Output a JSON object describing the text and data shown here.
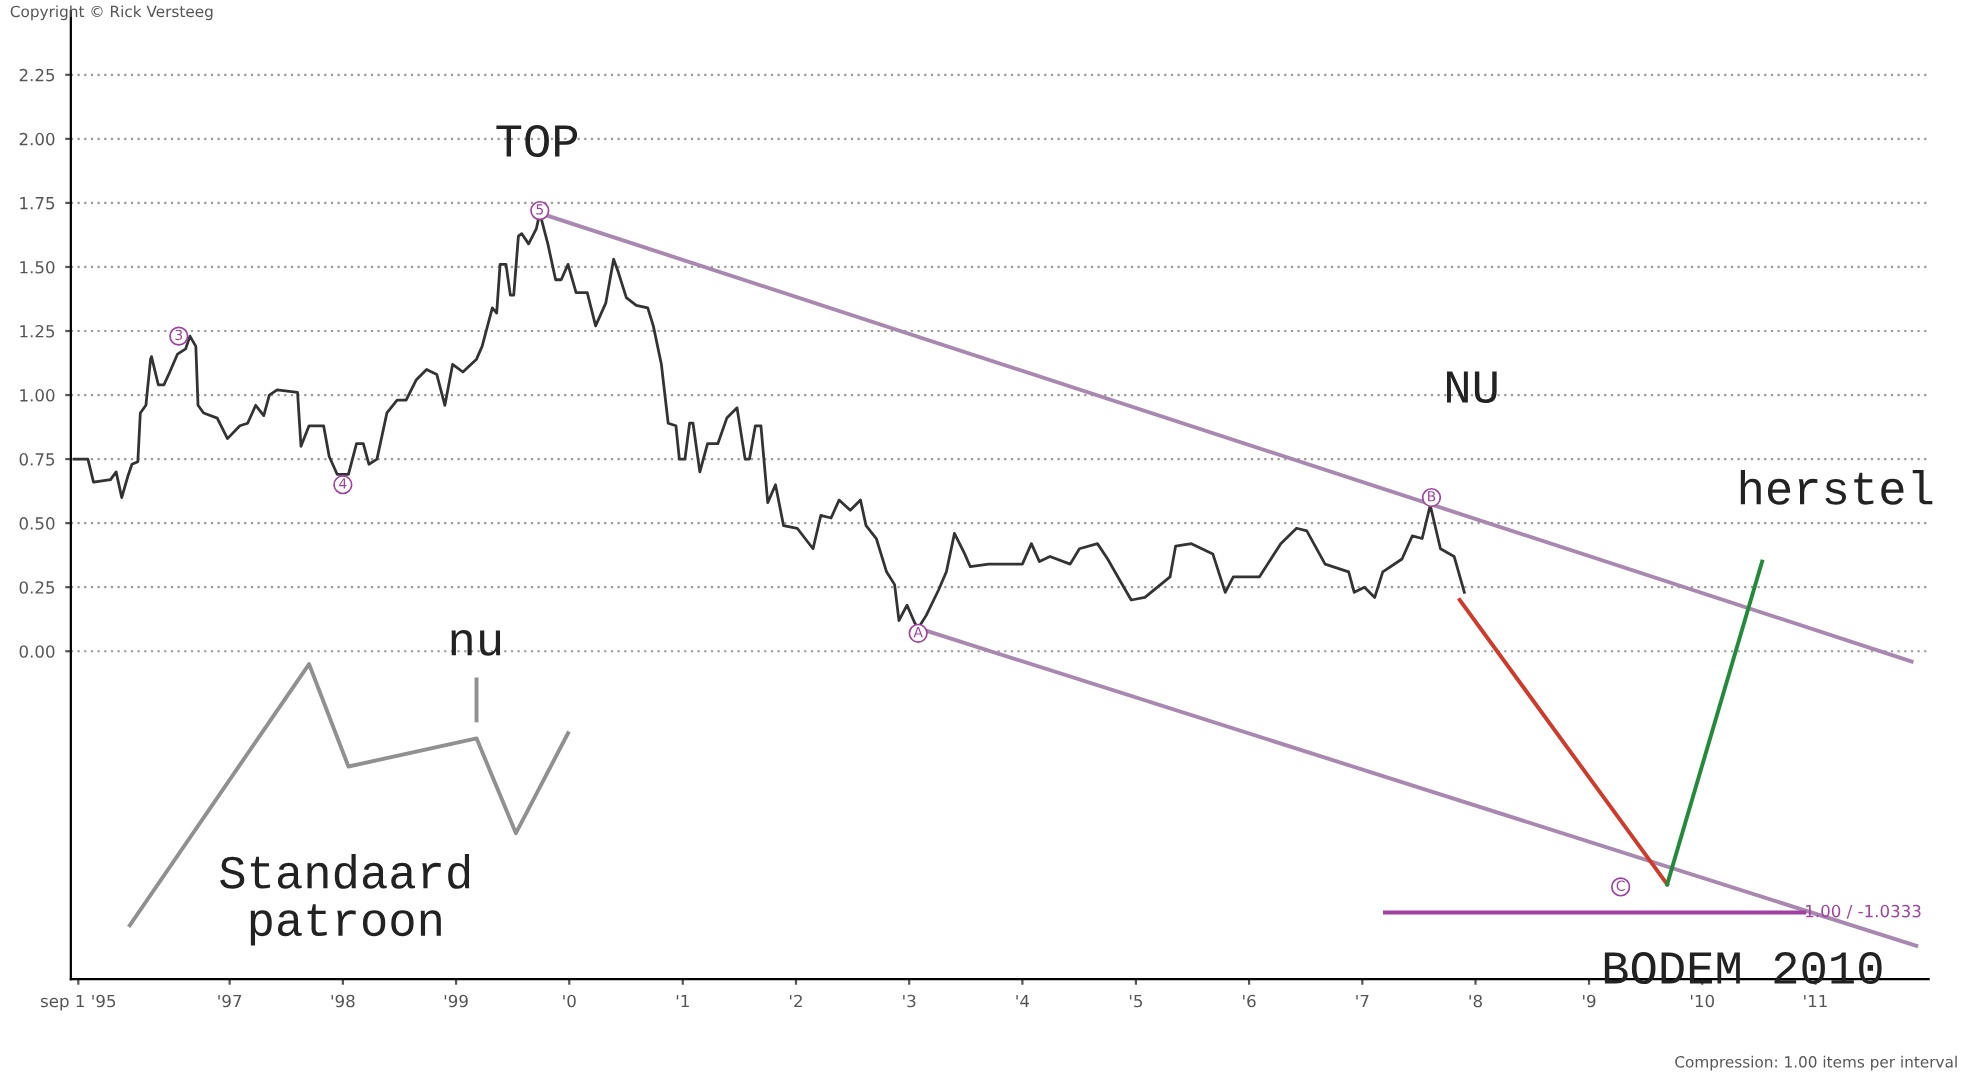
{
  "chart_data": {
    "type": "line",
    "xlim": [
      "1995-08-08",
      "2012-01-01"
    ],
    "ylim": [
      -1.28,
      2.5
    ],
    "xticks": [
      {
        "value": "1995-09-01",
        "label": "sep 1 '95"
      },
      {
        "value": "1997",
        "label": "'97"
      },
      {
        "value": "1998",
        "label": "'98"
      },
      {
        "value": "1999",
        "label": "'99"
      },
      {
        "value": "2000",
        "label": "'0"
      },
      {
        "value": "2001",
        "label": "'1"
      },
      {
        "value": "2002",
        "label": "'2"
      },
      {
        "value": "2003",
        "label": "'3"
      },
      {
        "value": "2004",
        "label": "'4"
      },
      {
        "value": "2005",
        "label": "'5"
      },
      {
        "value": "2006",
        "label": "'6"
      },
      {
        "value": "2007",
        "label": "'7"
      },
      {
        "value": "2008",
        "label": "'8"
      },
      {
        "value": "2009",
        "label": "'9"
      },
      {
        "value": "2010",
        "label": "'10"
      },
      {
        "value": "2011",
        "label": "'11"
      }
    ],
    "yticks": [
      {
        "value": 0,
        "label": "0.00"
      },
      {
        "value": 0.25,
        "label": "0.25"
      },
      {
        "value": 0.5,
        "label": "0.50"
      },
      {
        "value": 0.75,
        "label": "0.75"
      },
      {
        "value": 1,
        "label": "1.00"
      },
      {
        "value": 1.25,
        "label": "1.25"
      },
      {
        "value": 1.5,
        "label": "1.50"
      },
      {
        "value": 1.75,
        "label": "1.75"
      },
      {
        "value": 2,
        "label": "2.00"
      },
      {
        "value": 2.25,
        "label": "2.25"
      }
    ],
    "grid": "y",
    "line_style": "solid",
    "marker": "none",
    "series": [
      {
        "color": "#333333",
        "x": [
          "1995-08-19",
          "1995-10-02",
          "1995-10-20",
          "1995-12-14",
          "1996-01-01",
          "1996-01-19",
          "1996-02-07",
          "1996-02-21",
          "1996-03-11",
          "1996-03-19",
          "1996-04-06",
          "1996-04-21",
          "1996-04-24",
          "1996-05-16",
          "1996-06-03",
          "1996-06-22",
          "1996-07-17",
          "1996-08-12",
          "1996-08-26",
          "1996-09-14",
          "1996-09-21",
          "1996-10-09",
          "1996-11-22",
          "1996-12-25",
          "1997-02-03",
          "1997-02-28",
          "1997-03-26",
          "1997-04-21",
          "1997-05-09",
          "1997-06-03",
          "1997-08-08",
          "1997-08-19",
          "1997-09-14",
          "1997-10-31",
          "1997-11-18",
          "1997-12-14",
          "1998-01-19",
          "1998-02-14",
          "1998-03-08",
          "1998-03-26",
          "1998-04-21",
          "1998-05-23",
          "1998-06-25",
          "1998-07-24",
          "1998-08-26",
          "1998-09-28",
          "1998-10-31",
          "1998-11-26",
          "1998-12-21",
          "1999-01-23",
          "1999-03-08",
          "1999-03-26",
          "1999-04-28",
          "1999-05-12",
          "1999-05-23",
          "1999-06-11",
          "1999-06-25",
          "1999-07-06",
          "1999-07-21",
          "1999-08-01",
          "1999-08-23",
          "1999-09-17",
          "1999-09-28",
          "1999-10-24",
          "1999-11-18",
          "1999-12-06",
          "1999-12-28",
          "2000-01-23",
          "2000-02-28",
          "2000-03-26",
          "2000-04-28",
          "2000-05-23",
          "2000-06-07",
          "2000-07-03",
          "2000-08-04",
          "2000-09-10",
          "2000-09-28",
          "2000-10-24",
          "2000-11-15",
          "2000-12-10",
          "2000-12-21",
          "2001-01-08",
          "2001-01-23",
          "2001-02-03",
          "2001-02-25",
          "2001-03-22",
          "2001-04-24",
          "2001-05-23",
          "2001-06-25",
          "2001-07-21",
          "2001-08-04",
          "2001-08-23",
          "2001-09-10",
          "2001-10-02",
          "2001-10-27",
          "2001-11-22",
          "2002-01-05",
          "2002-02-25",
          "2002-03-22",
          "2002-04-24",
          "2002-05-20",
          "2002-06-25",
          "2002-07-28",
          "2002-08-15",
          "2002-09-17",
          "2002-10-20",
          "2002-11-15",
          "2002-11-29",
          "2002-12-25",
          "2003-01-19",
          "2003-01-30",
          "2003-02-25",
          "2003-04-06",
          "2003-05-01",
          "2003-05-27",
          "2003-06-29",
          "2003-07-17",
          "2003-09-14",
          "2004-01-01",
          "2004-01-30",
          "2004-02-25",
          "2004-03-30",
          "2004-06-03",
          "2004-07-03",
          "2004-08-30",
          "2004-10-02",
          "2004-11-04",
          "2004-12-17",
          "2005-01-30",
          "2005-04-21",
          "2005-05-09",
          "2005-06-29",
          "2005-09-06",
          "2005-10-16",
          "2005-11-11",
          "2006-02-03",
          "2006-04-13",
          "2006-06-03",
          "2006-07-06",
          "2006-09-03",
          "2006-11-18",
          "2006-12-06",
          "2007-01-08",
          "2007-02-10",
          "2007-03-08",
          "2007-05-09",
          "2007-06-11",
          "2007-07-13",
          "2007-08-08",
          "2007-09-10",
          "2007-10-24",
          "2007-11-26"
        ],
        "values": [
          0.75,
          0.75,
          0.66,
          0.67,
          0.7,
          0.6,
          0.68,
          0.73,
          0.74,
          0.93,
          0.96,
          1.14,
          1.15,
          1.04,
          1.04,
          1.09,
          1.16,
          1.18,
          1.23,
          1.19,
          0.96,
          0.93,
          0.91,
          0.83,
          0.88,
          0.89,
          0.96,
          0.92,
          1.0,
          1.02,
          1.01,
          0.8,
          0.88,
          0.88,
          0.76,
          0.69,
          0.69,
          0.81,
          0.81,
          0.73,
          0.75,
          0.93,
          0.98,
          0.98,
          1.06,
          1.1,
          1.08,
          0.96,
          1.12,
          1.09,
          1.14,
          1.19,
          1.34,
          1.32,
          1.51,
          1.51,
          1.39,
          1.39,
          1.62,
          1.63,
          1.59,
          1.65,
          1.71,
          1.59,
          1.45,
          1.45,
          1.51,
          1.4,
          1.4,
          1.27,
          1.36,
          1.53,
          1.48,
          1.38,
          1.35,
          1.34,
          1.27,
          1.12,
          0.89,
          0.88,
          0.75,
          0.75,
          0.89,
          0.89,
          0.7,
          0.81,
          0.81,
          0.91,
          0.95,
          0.75,
          0.75,
          0.88,
          0.88,
          0.58,
          0.65,
          0.49,
          0.48,
          0.4,
          0.53,
          0.52,
          0.59,
          0.55,
          0.59,
          0.49,
          0.44,
          0.31,
          0.26,
          0.12,
          0.18,
          0.11,
          0.09,
          0.14,
          0.24,
          0.31,
          0.46,
          0.38,
          0.33,
          0.34,
          0.34,
          0.42,
          0.35,
          0.37,
          0.34,
          0.4,
          0.42,
          0.36,
          0.29,
          0.2,
          0.21,
          0.29,
          0.41,
          0.42,
          0.38,
          0.23,
          0.29,
          0.29,
          0.42,
          0.48,
          0.47,
          0.34,
          0.31,
          0.23,
          0.25,
          0.21,
          0.31,
          0.36,
          0.45,
          0.44,
          0.57,
          0.4,
          0.37,
          0.23
        ]
      },
      {
        "color": "#a888b0",
        "x": [
          "1999-09-28",
          "2011-11-07"
        ],
        "values": [
          1.71,
          -0.04
        ]
      },
      {
        "color": "#a888b0",
        "x": [
          "2003-01-30",
          "2011-11-22"
        ],
        "values": [
          0.09,
          -1.15
        ]
      },
      {
        "name": "1.00 / -1.0333",
        "color": "#a040a0",
        "x": [
          "2007-03-15",
          "2010-11-26"
        ],
        "values": [
          -1.02,
          -1.02
        ]
      },
      {
        "color": "#d03a2a",
        "x": [
          "2007-11-11",
          "2009-09-10"
        ],
        "values": [
          0.2,
          -0.91
        ]
      },
      {
        "color": "#238a3a",
        "x": [
          "2009-09-10",
          "2010-07-13"
        ],
        "values": [
          -0.91,
          0.35
        ]
      },
      {
        "color": "#909090",
        "x": [
          "1996-02-14",
          "1997-09-14",
          "1998-01-19",
          "1999-03-08",
          "1999-07-13",
          "1999-12-28"
        ],
        "values": [
          -1.07,
          -0.05,
          -0.45,
          -0.34,
          -0.71,
          -0.32
        ]
      },
      {
        "color": "#909090",
        "x": [
          "1999-03-08",
          "1999-03-08"
        ],
        "values": [
          -0.11,
          -0.27
        ]
      }
    ],
    "annotations": [
      "Copyright © Rick Versteeg",
      "Compression: 1.00 items per interval",
      {
        "text": "3",
        "x": "1996-07-21",
        "y": 1.23
      },
      {
        "text": "4",
        "x": "1998-01-01",
        "y": 0.65
      },
      {
        "text": "5",
        "x": "1999-09-28",
        "y": 1.72
      },
      {
        "text": "A",
        "x": "2003-01-30",
        "y": 0.07
      },
      {
        "text": "B",
        "x": "2007-08-12",
        "y": 0.6
      },
      {
        "text": "C",
        "x": "2009-04-13",
        "y": -0.92
      },
      "TOP",
      "NU",
      "herstel",
      "nu",
      "Standaard\npatroon",
      "BODEM 2010"
    ]
  }
}
